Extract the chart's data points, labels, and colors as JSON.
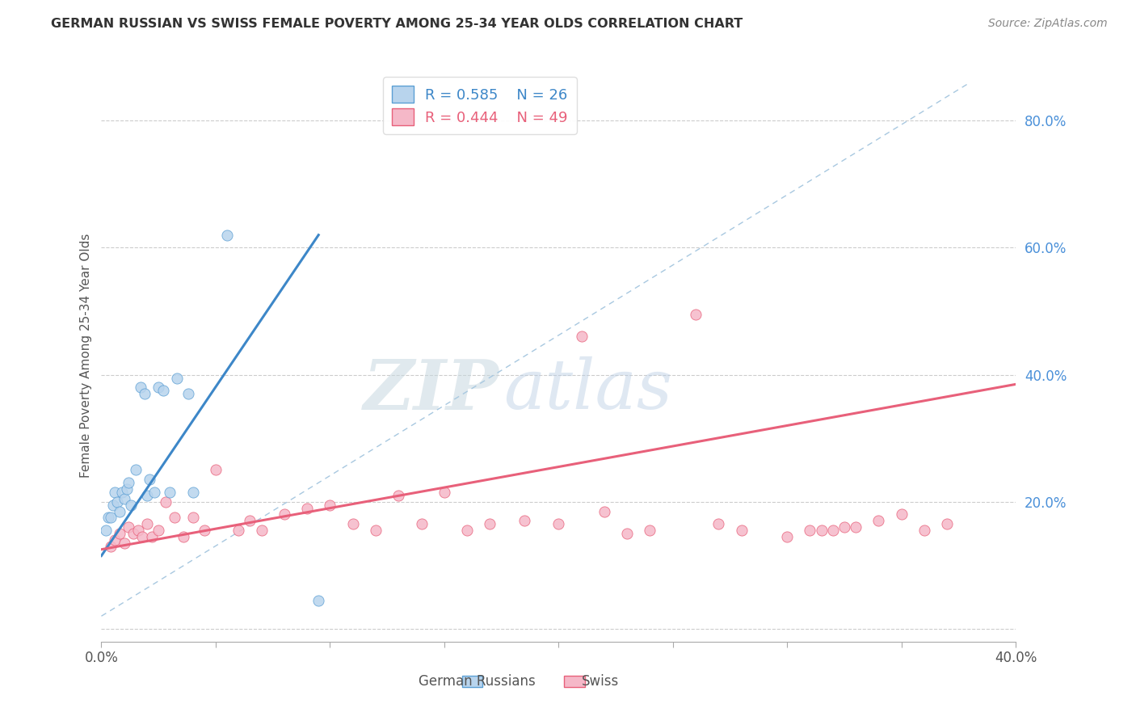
{
  "title": "GERMAN RUSSIAN VS SWISS FEMALE POVERTY AMONG 25-34 YEAR OLDS CORRELATION CHART",
  "source": "Source: ZipAtlas.com",
  "ylabel": "Female Poverty Among 25-34 Year Olds",
  "xlim": [
    0.0,
    0.4
  ],
  "ylim": [
    -0.02,
    0.88
  ],
  "xticks": [
    0.0,
    0.05,
    0.1,
    0.15,
    0.2,
    0.25,
    0.3,
    0.35,
    0.4
  ],
  "yticks_right": [
    0.0,
    0.2,
    0.4,
    0.6,
    0.8
  ],
  "german_russian_fill": "#b8d4ed",
  "swiss_fill": "#f5b8c8",
  "german_russian_edge": "#5b9fd4",
  "swiss_edge": "#e8607a",
  "blue_line_color": "#3d87c8",
  "pink_line_color": "#e8607a",
  "diag_line_color": "#a8c8e0",
  "legend_r1": "R = 0.585",
  "legend_n1": "N = 26",
  "legend_r2": "R = 0.444",
  "legend_n2": "N = 49",
  "watermark_zip": "ZIP",
  "watermark_atlas": "atlas",
  "german_russian_x": [
    0.002,
    0.003,
    0.004,
    0.005,
    0.006,
    0.007,
    0.008,
    0.009,
    0.01,
    0.011,
    0.012,
    0.013,
    0.015,
    0.017,
    0.019,
    0.02,
    0.021,
    0.023,
    0.025,
    0.027,
    0.03,
    0.033,
    0.038,
    0.04,
    0.055,
    0.095
  ],
  "german_russian_y": [
    0.155,
    0.175,
    0.175,
    0.195,
    0.215,
    0.2,
    0.185,
    0.215,
    0.205,
    0.22,
    0.23,
    0.195,
    0.25,
    0.38,
    0.37,
    0.21,
    0.235,
    0.215,
    0.38,
    0.375,
    0.215,
    0.395,
    0.37,
    0.215,
    0.62,
    0.045
  ],
  "swiss_x": [
    0.004,
    0.006,
    0.008,
    0.01,
    0.012,
    0.014,
    0.016,
    0.018,
    0.02,
    0.022,
    0.025,
    0.028,
    0.032,
    0.036,
    0.04,
    0.045,
    0.05,
    0.06,
    0.065,
    0.07,
    0.08,
    0.09,
    0.1,
    0.11,
    0.12,
    0.13,
    0.14,
    0.15,
    0.16,
    0.17,
    0.185,
    0.2,
    0.21,
    0.22,
    0.23,
    0.24,
    0.26,
    0.27,
    0.28,
    0.3,
    0.31,
    0.315,
    0.32,
    0.325,
    0.33,
    0.34,
    0.35,
    0.36,
    0.37
  ],
  "swiss_y": [
    0.13,
    0.14,
    0.15,
    0.135,
    0.16,
    0.15,
    0.155,
    0.145,
    0.165,
    0.145,
    0.155,
    0.2,
    0.175,
    0.145,
    0.175,
    0.155,
    0.25,
    0.155,
    0.17,
    0.155,
    0.18,
    0.19,
    0.195,
    0.165,
    0.155,
    0.21,
    0.165,
    0.215,
    0.155,
    0.165,
    0.17,
    0.165,
    0.46,
    0.185,
    0.15,
    0.155,
    0.495,
    0.165,
    0.155,
    0.145,
    0.155,
    0.155,
    0.155,
    0.16,
    0.16,
    0.17,
    0.18,
    0.155,
    0.165
  ],
  "gr_line_x0": 0.0,
  "gr_line_y0": 0.115,
  "gr_line_x1": 0.095,
  "gr_line_y1": 0.62,
  "sw_line_x0": 0.0,
  "sw_line_y0": 0.125,
  "sw_line_x1": 0.4,
  "sw_line_y1": 0.385
}
